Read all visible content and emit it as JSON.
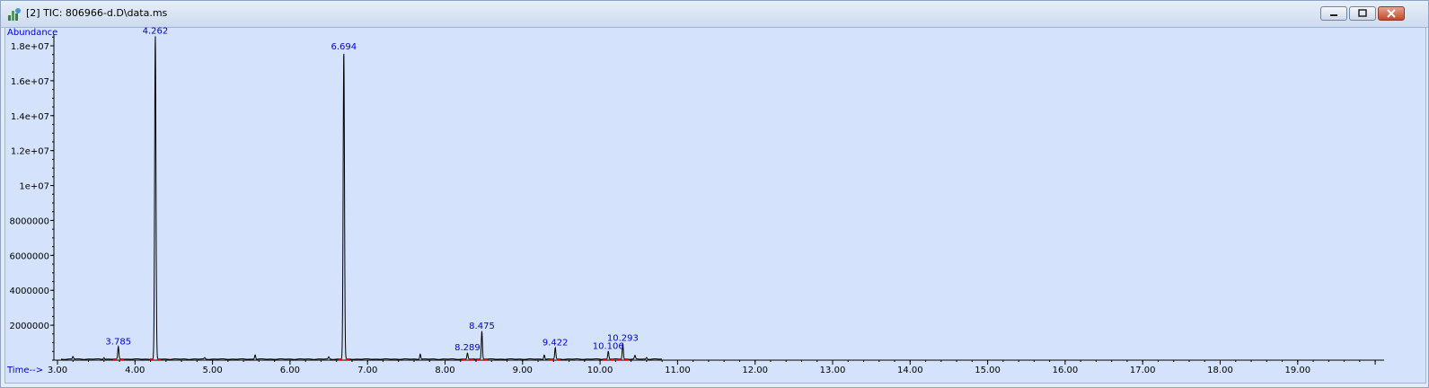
{
  "window": {
    "title": "[2] TIC: 806966-d.D\\data.ms",
    "controls": [
      "minimize",
      "maximize",
      "close"
    ]
  },
  "plot": {
    "y_axis_label": "Abundance",
    "x_axis_label": "Time-->"
  },
  "chart_data": {
    "type": "line",
    "ylabel": "Abundance",
    "xlabel": "Time-->",
    "xlim": [
      3.0,
      20.0
    ],
    "ylim": [
      0,
      18800000
    ],
    "x_ticks": [
      "3.00",
      "4.00",
      "5.00",
      "6.00",
      "7.00",
      "8.00",
      "9.00",
      "10.00",
      "11.00",
      "12.00",
      "13.00",
      "14.00",
      "15.00",
      "16.00",
      "17.00",
      "18.00",
      "19.00"
    ],
    "y_ticks": [
      "2000000",
      "4000000",
      "6000000",
      "8000000",
      "1e+07",
      "1.2e+07",
      "1.4e+07",
      "1.6e+07",
      "1.8e+07"
    ],
    "y_tick_values": [
      2000000,
      4000000,
      6000000,
      8000000,
      10000000,
      12000000,
      14000000,
      16000000,
      18000000
    ],
    "labeled_peaks": [
      {
        "rt": 3.785,
        "label": "3.785",
        "abundance": 700000
      },
      {
        "rt": 4.262,
        "label": "4.262",
        "abundance": 18500000
      },
      {
        "rt": 6.694,
        "label": "6.694",
        "abundance": 17600000
      },
      {
        "rt": 8.289,
        "label": "8.289",
        "abundance": 350000
      },
      {
        "rt": 8.475,
        "label": "8.475",
        "abundance": 1600000
      },
      {
        "rt": 9.422,
        "label": "9.422",
        "abundance": 650000
      },
      {
        "rt": 10.106,
        "label": "10.106",
        "abundance": 450000
      },
      {
        "rt": 10.293,
        "label": "10.293",
        "abundance": 900000
      }
    ],
    "minor_peaks": [
      {
        "rt": 3.2,
        "abundance": 150000
      },
      {
        "rt": 3.6,
        "abundance": 100000
      },
      {
        "rt": 4.9,
        "abundance": 80000
      },
      {
        "rt": 5.55,
        "abundance": 250000
      },
      {
        "rt": 6.5,
        "abundance": 120000
      },
      {
        "rt": 7.68,
        "abundance": 300000
      },
      {
        "rt": 9.28,
        "abundance": 250000
      },
      {
        "rt": 10.45,
        "abundance": 200000
      },
      {
        "rt": 10.6,
        "abundance": 100000
      }
    ]
  },
  "colors": {
    "trace": "#000000",
    "peak_label": "#0000cc",
    "axis_label": "#0000cc",
    "peak_marker": "#ff0000",
    "plot_bg": "#d4e3fb"
  }
}
